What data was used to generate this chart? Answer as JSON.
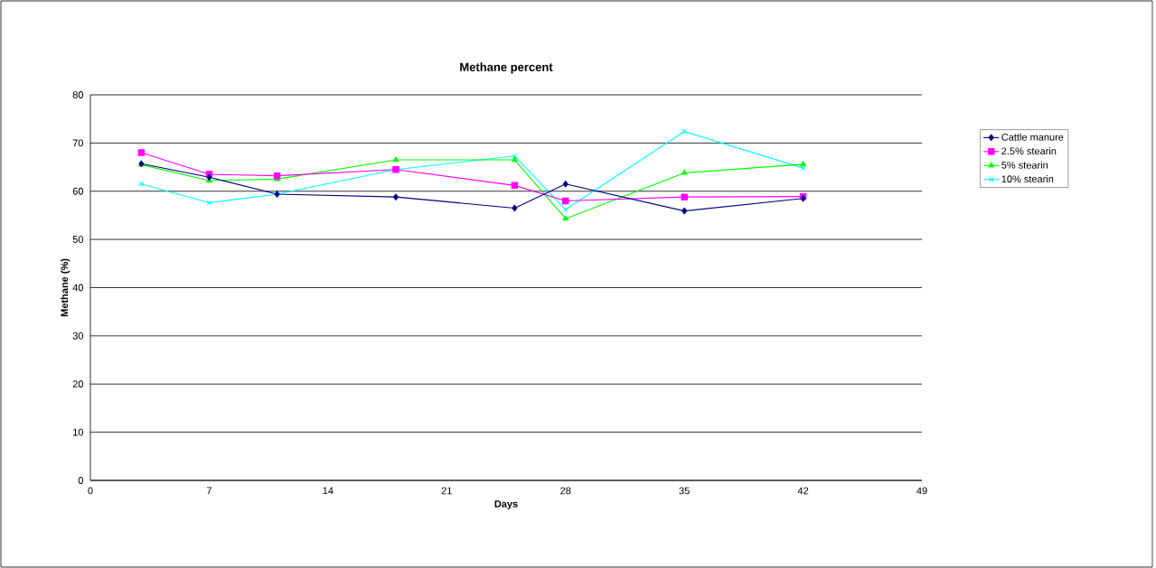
{
  "chart_data": {
    "type": "line",
    "title": "Methane percent",
    "xlabel": "Days",
    "ylabel": "Methane (%)",
    "x": [
      3,
      7,
      11,
      18,
      25,
      28,
      35,
      42
    ],
    "series": [
      {
        "name": "Cattle manure",
        "color": "#000080",
        "marker": "diamond",
        "values": [
          65.7,
          62.9,
          59.4,
          58.8,
          56.5,
          61.5,
          55.9,
          58.5
        ]
      },
      {
        "name": "2.5% stearin",
        "color": "#ff00ff",
        "marker": "square",
        "values": [
          68.0,
          63.5,
          63.2,
          64.5,
          61.2,
          58.0,
          58.8,
          58.9
        ]
      },
      {
        "name": "5% stearin",
        "color": "#00ff00",
        "marker": "triangle",
        "values": [
          65.5,
          62.2,
          62.5,
          66.5,
          66.5,
          54.3,
          63.8,
          65.6
        ]
      },
      {
        "name": "10% stearin",
        "color": "#00ffff",
        "marker": "cross",
        "values": [
          61.5,
          57.6,
          59.4,
          64.5,
          67.3,
          56.2,
          72.4,
          64.8
        ]
      }
    ],
    "xlim": [
      0,
      49
    ],
    "xticks": [
      0,
      7,
      14,
      21,
      28,
      35,
      42,
      49
    ],
    "ylim": [
      0,
      80
    ],
    "yticks": [
      0,
      10,
      20,
      30,
      40,
      50,
      60,
      70,
      80
    ],
    "grid": "y",
    "legend": "right",
    "line_style": "solid"
  }
}
